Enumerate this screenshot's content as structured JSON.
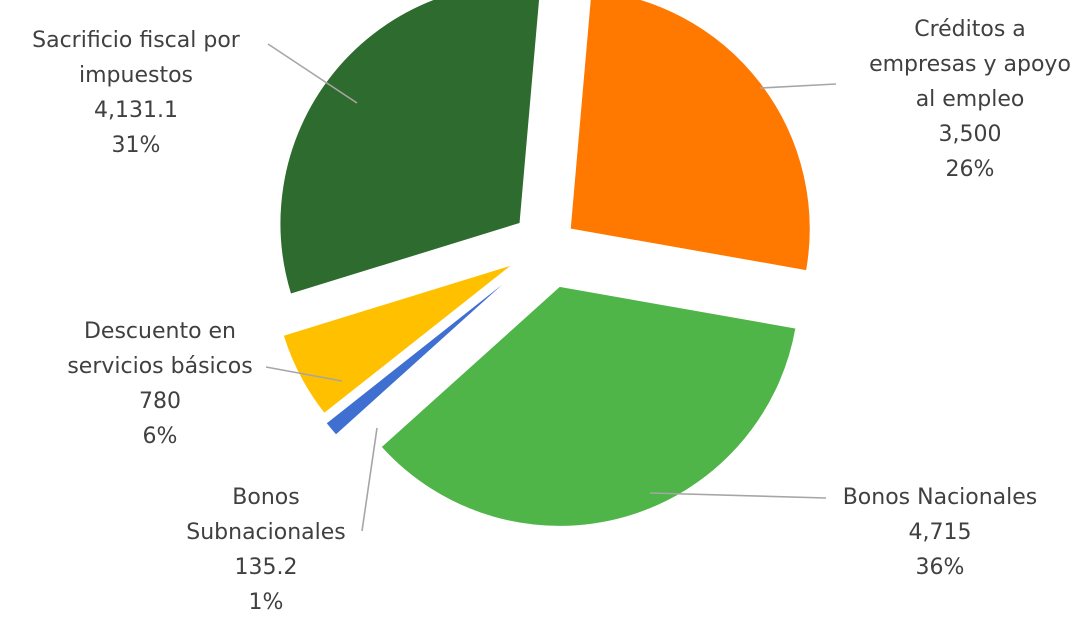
{
  "chart_data": {
    "type": "pie",
    "title": "",
    "exploded": true,
    "slices": [
      {
        "label_lines": [
          "Créditos a",
          "empresas y apoyo",
          "al empleo"
        ],
        "value": 3500,
        "value_label": "3,500",
        "percent_label": "26%",
        "color": "#ff7800"
      },
      {
        "label_lines": [
          "Bonos Nacionales"
        ],
        "value": 4715,
        "value_label": "4,715",
        "percent_label": "36%",
        "color": "#4fb548"
      },
      {
        "label_lines": [
          "Bonos",
          "Subnacionales"
        ],
        "value": 135.2,
        "value_label": "135.2",
        "percent_label": "1%",
        "color": "#3f6fd1"
      },
      {
        "label_lines": [
          "Descuento en",
          "servicios básicos"
        ],
        "value": 780,
        "value_label": "780",
        "percent_label": "6%",
        "color": "#ffc000"
      },
      {
        "label_lines": [
          "Sacrificio fiscal por",
          "impuestos"
        ],
        "value": 4131.1,
        "value_label": "4,131.1",
        "percent_label": "31%",
        "color": "#2e6b2e"
      }
    ]
  }
}
